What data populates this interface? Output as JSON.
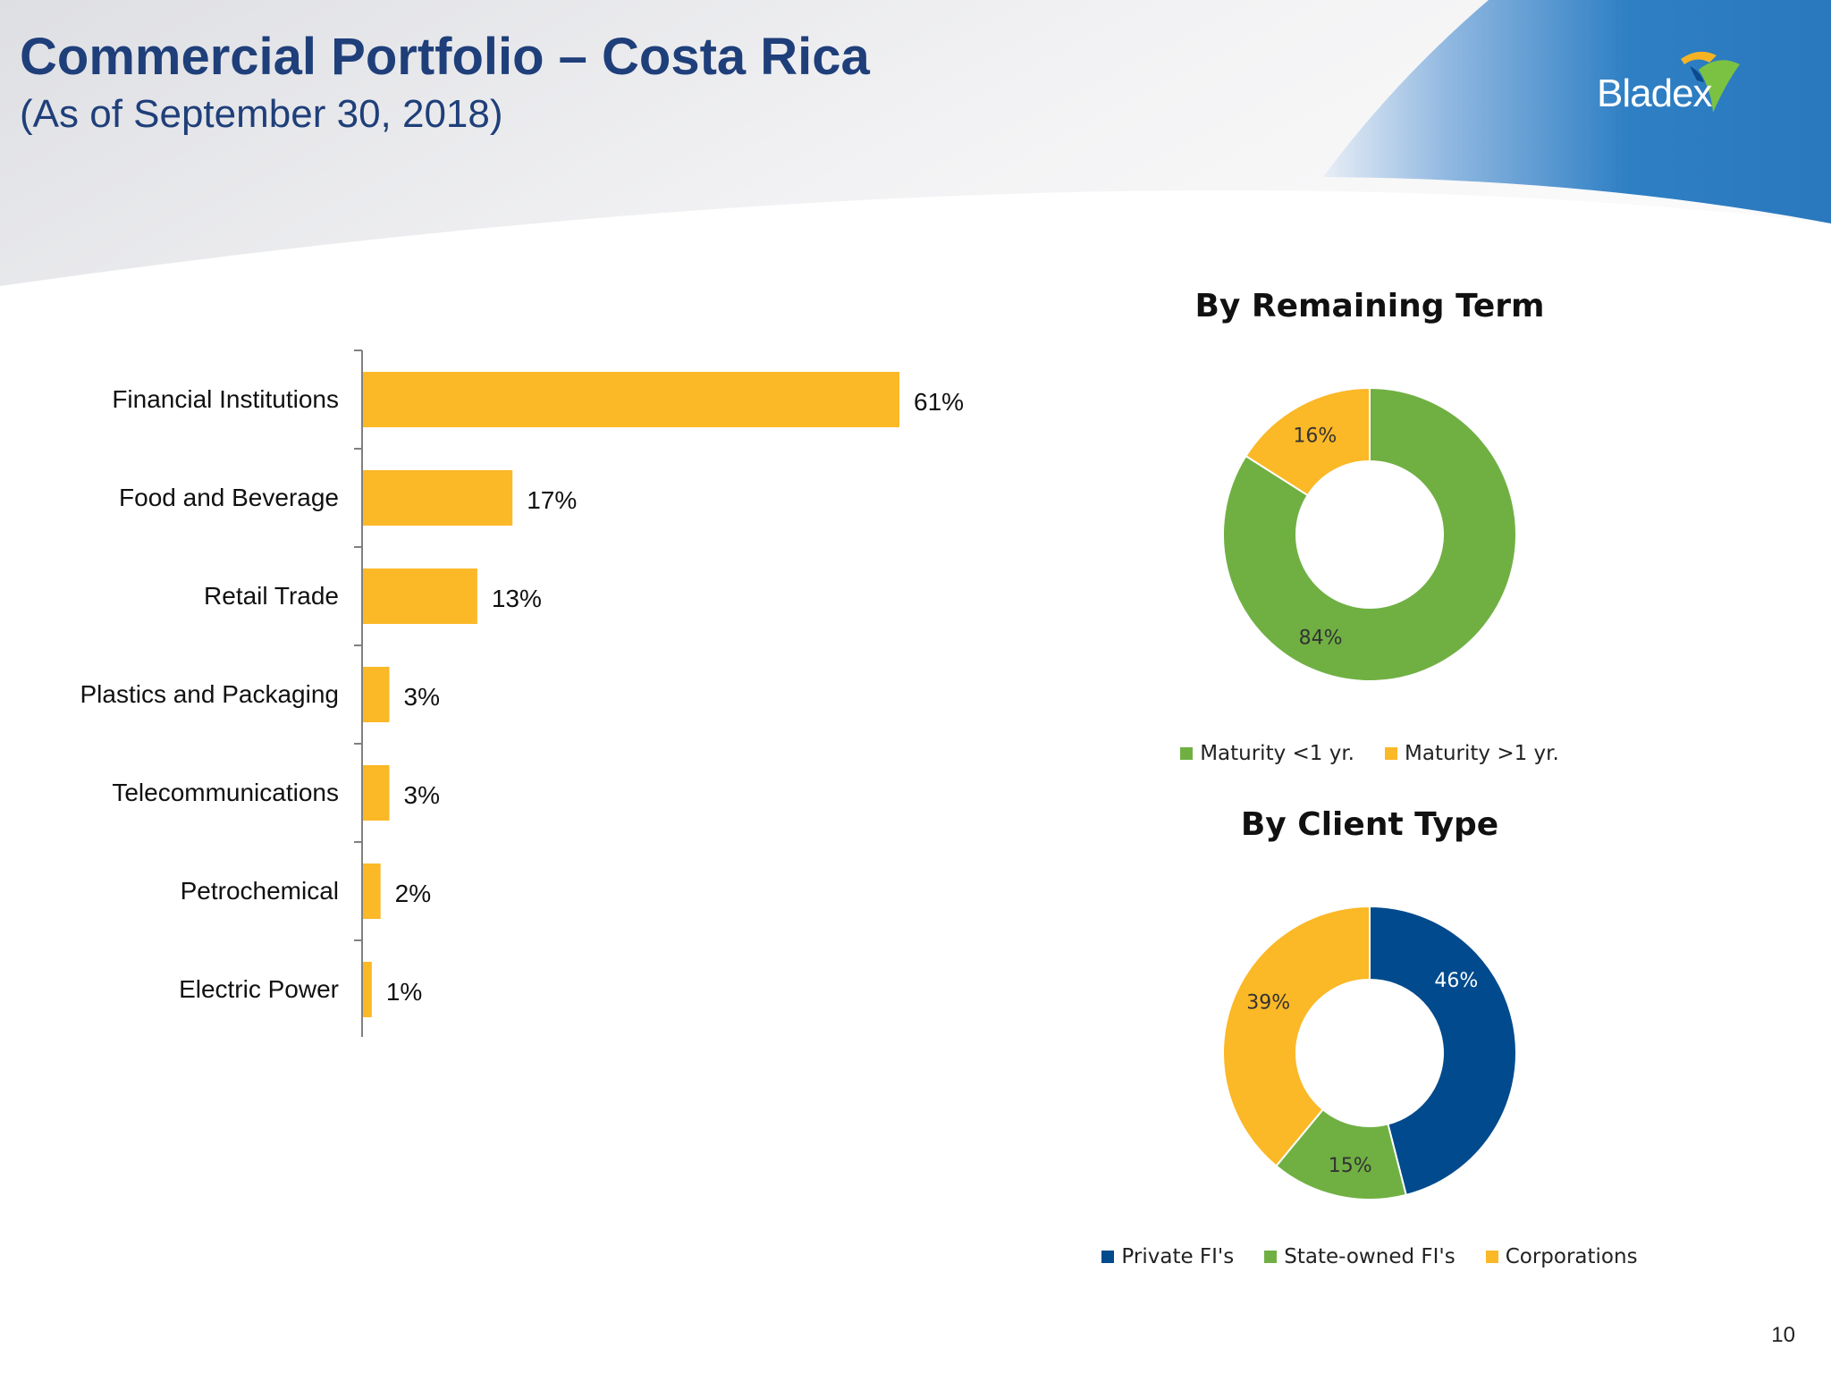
{
  "header": {
    "title": "Commercial Portfolio – Costa Rica",
    "subtitle": "(As of September 30, 2018)",
    "logo_text": "Bladex"
  },
  "page_number": "10",
  "colors": {
    "accent_blue": "#1f3f7a",
    "gold": "#fbb827",
    "green": "#70b043",
    "navy": "#004a8d",
    "header_blue": "#2e7fc4"
  },
  "chart_data": [
    {
      "type": "bar",
      "orientation": "horizontal",
      "categories": [
        "Financial Institutions",
        "Food and Beverage",
        "Retail Trade",
        "Plastics and Packaging",
        "Telecommunications",
        "Petrochemical",
        "Electric Power"
      ],
      "values": [
        61,
        17,
        13,
        3,
        3,
        2,
        1
      ],
      "data_labels": [
        "61%",
        "17%",
        "13%",
        "3%",
        "3%",
        "2%",
        "1%"
      ],
      "unit": "%",
      "bar_color": "#fbb827",
      "xlim": [
        0,
        100
      ],
      "grid": false
    },
    {
      "type": "pie",
      "subtype": "donut",
      "title": "By Remaining Term",
      "series": [
        {
          "name": "Maturity <1 yr.",
          "value": 84,
          "label": "84%",
          "color": "#70b043"
        },
        {
          "name": "Maturity >1 yr.",
          "value": 16,
          "label": "16%",
          "color": "#fbb827"
        }
      ],
      "legend_position": "bottom"
    },
    {
      "type": "pie",
      "subtype": "donut",
      "title": "By Client Type",
      "series": [
        {
          "name": "Private FI's",
          "value": 46,
          "label": "46%",
          "color": "#004a8d"
        },
        {
          "name": "State-owned FI's",
          "value": 15,
          "label": "15%",
          "color": "#70b043"
        },
        {
          "name": "Corporations",
          "value": 39,
          "label": "39%",
          "color": "#fbb827"
        }
      ],
      "legend_position": "bottom"
    }
  ]
}
